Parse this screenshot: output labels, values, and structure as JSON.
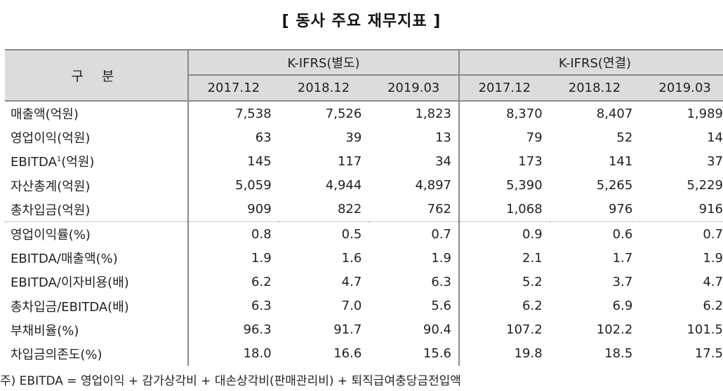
{
  "title": "[ 동사 주요 재무지표 ]",
  "table": {
    "label_header": "구 분",
    "groups": [
      {
        "name": "K-IFRS(별도)",
        "periods": [
          "2017.12",
          "2018.12",
          "2019.03"
        ]
      },
      {
        "name": "K-IFRS(연결)",
        "periods": [
          "2017.12",
          "2018.12",
          "2019.03"
        ]
      }
    ],
    "rows": [
      {
        "label": "매출액(억원)",
        "values": [
          "7,538",
          "7,526",
          "1,823",
          "8,370",
          "8,407",
          "1,989"
        ]
      },
      {
        "label": "영업이익(억원)",
        "values": [
          "63",
          "39",
          "13",
          "79",
          "52",
          "14"
        ]
      },
      {
        "label_main": "EBITDA",
        "label_sup": "1",
        "label_rest": "(억원)",
        "values": [
          "145",
          "117",
          "34",
          "173",
          "141",
          "37"
        ]
      },
      {
        "label": "자산총계(억원)",
        "values": [
          "5,059",
          "4,944",
          "4,897",
          "5,390",
          "5,265",
          "5,229"
        ]
      },
      {
        "label": "총차입금(억원)",
        "values": [
          "909",
          "822",
          "762",
          "1,068",
          "976",
          "916"
        ]
      },
      {
        "label": "영업이익률(%)",
        "values": [
          "0.8",
          "0.5",
          "0.7",
          "0.9",
          "0.6",
          "0.7"
        ]
      },
      {
        "label": "EBITDA/매출액(%)",
        "values": [
          "1.9",
          "1.6",
          "1.9",
          "2.1",
          "1.7",
          "1.9"
        ]
      },
      {
        "label": "EBITDA/이자비용(배)",
        "values": [
          "6.2",
          "4.7",
          "6.3",
          "5.2",
          "3.7",
          "4.7"
        ]
      },
      {
        "label": "총차입금/EBITDA(배)",
        "values": [
          "6.3",
          "7.0",
          "5.6",
          "6.2",
          "6.9",
          "6.2"
        ]
      },
      {
        "label": "부채비율(%)",
        "values": [
          "96.3",
          "91.7",
          "90.4",
          "107.2",
          "102.2",
          "101.5"
        ]
      },
      {
        "label": "차입금의존도(%)",
        "values": [
          "18.0",
          "16.6",
          "15.6",
          "19.8",
          "18.5",
          "17.5"
        ]
      }
    ]
  },
  "footnote": "주) EBITDA = 영업이익 + 감가상각비 + 대손상각비(판매관리비) + 퇴직급여충당금전입액",
  "colors": {
    "header_bg": "#dcdcdc",
    "rule": "#8a8a8a"
  }
}
